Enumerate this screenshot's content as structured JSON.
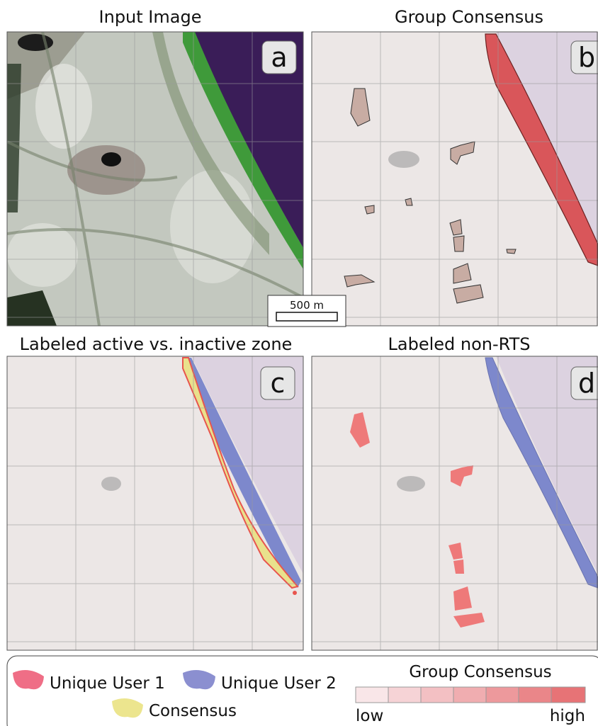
{
  "panels": [
    {
      "title": "Input Image",
      "letter": "a"
    },
    {
      "title": "Group Consensus",
      "letter": "b"
    },
    {
      "title": "Labeled active vs. inactive zone",
      "letter": "c"
    },
    {
      "title": "Labeled non-RTS",
      "letter": "d"
    }
  ],
  "scale_bar": "500 m",
  "legend": {
    "items": [
      "Unique User 1",
      "Unique User 2",
      "Consensus"
    ],
    "scale_title": "Group Consensus",
    "low": "low",
    "high": "high"
  }
}
